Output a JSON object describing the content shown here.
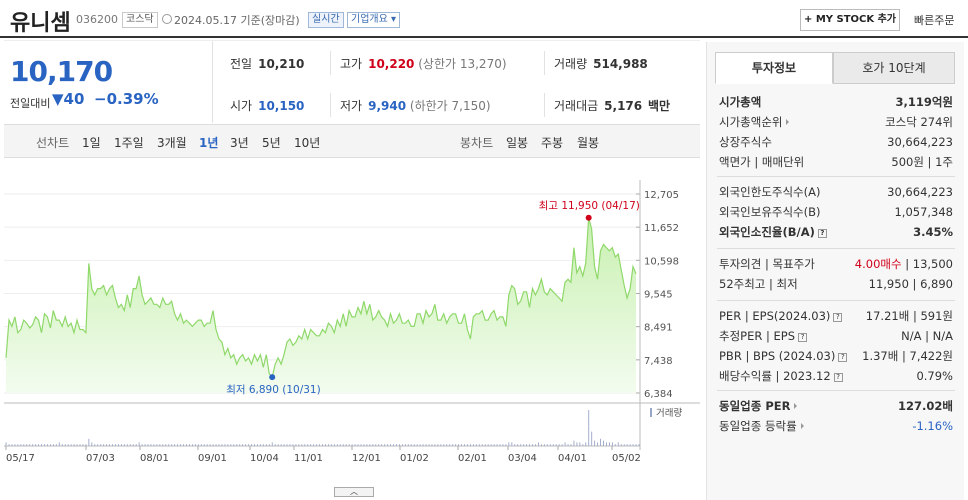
{
  "header": {
    "name": "유니셈",
    "code": "036200",
    "market_tag": "코스닥",
    "date": "2024.05.17",
    "date_suffix": "기준(장마감)",
    "live_tag": "실시간",
    "info_tag": "기업개요 ▾",
    "mystock_label": "+ MY STOCK 추가",
    "quick_order": "빠른주문"
  },
  "price": {
    "current": "10,170",
    "change_label": "전일대비",
    "change": "▼40",
    "change_pct": "−0.39%",
    "prev_close_label": "전일",
    "prev_close": "10,210",
    "high_label": "고가",
    "high": "10,220",
    "upper_limit": "(상한가 13,270)",
    "volume_label": "거래량",
    "volume": "514,988",
    "open_label": "시가",
    "open": "10,150",
    "low_label": "저가",
    "low": "9,940",
    "lower_limit": "(하한가 7,150)",
    "amount_label": "거래대금",
    "amount": "5,176",
    "amount_unit": "백만"
  },
  "tabs": {
    "line_chart": "선차트",
    "periods": [
      "1일",
      "1주일",
      "3개월",
      "1년",
      "3년",
      "5년",
      "10년"
    ],
    "active_period": "1년",
    "candle_chart": "봉차트",
    "candle_periods": [
      "일봉",
      "주봉",
      "월봉"
    ]
  },
  "chart_data": {
    "type": "area",
    "y_ticks": [
      "12,705",
      "11,652",
      "10,598",
      "9,545",
      "8,491",
      "7,438",
      "6,384"
    ],
    "ylim": [
      6384,
      12705
    ],
    "x_ticks": [
      "05/17",
      "07/03",
      "08/01",
      "09/01",
      "10/04",
      "11/01",
      "12/01",
      "01/02",
      "02/01",
      "03/04",
      "04/01",
      "05/02"
    ],
    "series": [
      {
        "values": [
          7500,
          8700,
          8500,
          8800,
          8300,
          8400,
          8700,
          8600,
          8450,
          8550,
          8800,
          8700,
          8300,
          8900,
          8800,
          8450,
          9000,
          8700,
          8700,
          8500,
          8800,
          8500,
          8600,
          8300,
          8700,
          8400,
          8400,
          8300,
          10500,
          9700,
          9500,
          9700,
          9700,
          9800,
          9500,
          9700,
          9800,
          9400,
          9100,
          9200,
          9000,
          9500,
          9100,
          9700,
          9700,
          10100,
          9500,
          9200,
          9300,
          9400,
          9200,
          9200,
          9100,
          9400,
          9200,
          9200,
          9300,
          8900,
          8700,
          8900,
          8600,
          8700,
          8600,
          8500,
          8600,
          8700,
          8700,
          8500,
          8600,
          8600,
          9000,
          8400,
          8100,
          8000,
          7600,
          7800,
          7500,
          7600,
          7300,
          7500,
          7600,
          7400,
          7500,
          7300,
          7600,
          7400,
          7600,
          7200,
          7600,
          7000,
          6890,
          7300,
          7500,
          7300,
          7600,
          8000,
          8100,
          7900,
          8000,
          8200,
          8100,
          8400,
          8100,
          8400,
          8300,
          8200,
          8200,
          8400,
          8300,
          8600,
          8500,
          8300,
          8700,
          8500,
          8900,
          8500,
          9000,
          8800,
          8800,
          9100,
          8900,
          9300,
          8900,
          9200,
          8700,
          8800,
          9000,
          8800,
          8700,
          8500,
          8900,
          8600,
          8700,
          8900,
          8600,
          8600,
          8700,
          8500,
          8500,
          8900,
          8900,
          8600,
          9000,
          8800,
          8900,
          9200,
          8700,
          8700,
          8900,
          8600,
          8800,
          8900,
          8900,
          8600,
          8600,
          8900,
          8400,
          8100,
          8800,
          8900,
          8900,
          9000,
          8700,
          8700,
          8900,
          9000,
          8700,
          8800,
          8800,
          8500,
          9500,
          9800,
          9700,
          9200,
          9300,
          9600,
          9600,
          9100,
          9700,
          9500,
          9700,
          10000,
          9600,
          9500,
          9700,
          9600,
          9500,
          9400,
          9300,
          9900,
          10000,
          9900,
          11000,
          10200,
          10400,
          10100,
          10500,
          11950,
          11600,
          10400,
          10000,
          10900,
          11100,
          11000,
          10900,
          11000,
          10700,
          10800,
          10300,
          9800,
          9400,
          9700,
          10400,
          10170
        ]
      }
    ],
    "max_label": "최고 11,950 (04/17)",
    "min_label": "최저 6,890 (10/31)",
    "volume_label": "거래량",
    "volume_values": [
      2,
      1,
      1,
      1,
      1,
      1,
      1,
      1,
      1,
      1,
      1,
      1,
      1,
      1,
      1,
      1,
      1,
      1,
      2,
      1,
      1,
      1,
      1,
      1,
      1,
      1,
      1,
      1,
      4,
      2,
      1,
      1,
      1,
      1,
      1,
      1,
      1,
      1,
      1,
      1,
      1,
      1,
      1,
      1,
      1,
      2,
      1,
      1,
      1,
      1,
      1,
      1,
      1,
      1,
      1,
      1,
      1,
      1,
      1,
      1,
      1,
      1,
      1,
      1,
      1,
      1,
      1,
      1,
      1,
      1,
      1,
      1,
      1,
      1,
      1,
      1,
      1,
      1,
      1,
      1,
      1,
      1,
      1,
      1,
      1,
      1,
      1,
      1,
      1,
      1,
      2,
      1,
      1,
      1,
      1,
      1,
      1,
      1,
      1,
      1,
      1,
      1,
      1,
      1,
      1,
      1,
      1,
      1,
      1,
      1,
      1,
      1,
      1,
      1,
      1,
      1,
      1,
      1,
      1,
      1,
      1,
      1,
      1,
      1,
      1,
      1,
      1,
      1,
      1,
      1,
      1,
      1,
      1,
      1,
      1,
      1,
      1,
      1,
      1,
      1,
      1,
      1,
      1,
      1,
      1,
      1,
      1,
      1,
      1,
      1,
      1,
      1,
      1,
      1,
      1,
      1,
      1,
      1,
      1,
      1,
      1,
      1,
      1,
      1,
      1,
      1,
      1,
      1,
      1,
      1,
      2,
      2,
      1,
      1,
      1,
      1,
      1,
      1,
      1,
      1,
      2,
      1,
      1,
      1,
      1,
      1,
      1,
      1,
      1,
      2,
      1,
      1,
      3,
      2,
      2,
      1,
      2,
      20,
      8,
      3,
      2,
      4,
      3,
      2,
      2,
      2,
      1,
      2,
      1,
      1,
      1,
      1,
      1,
      1,
      1
    ]
  },
  "side": {
    "tab_active": "투자정보",
    "tab_other": "호가 10단계",
    "rows1": [
      {
        "l": "시가총액",
        "r": "3,119억원",
        "bold": true
      },
      {
        "l": "시가총액순위",
        "r": "코스닥 274위",
        "arrow": true
      },
      {
        "l": "상장주식수",
        "r": "30,664,223"
      },
      {
        "l": "액면가 | 매매단위",
        "r": "500원 | 1주"
      }
    ],
    "rows2": [
      {
        "l": "외국인한도주식수(A)",
        "r": "30,664,223"
      },
      {
        "l": "외국인보유주식수(B)",
        "r": "1,057,348"
      },
      {
        "l": "외국인소진율(B/A)",
        "r": "3.45%",
        "bold": true,
        "q": true
      }
    ],
    "rows3": [
      {
        "l": "투자의견 | 목표주가",
        "r_red": "4.00매수",
        "r": " | 13,500"
      },
      {
        "l": "52주최고 | 최저",
        "r": "11,950 | 6,890"
      }
    ],
    "rows4": [
      {
        "l": "PER | EPS(2024.03)",
        "r": "17.21배 | 591원",
        "q": true
      },
      {
        "l": "추정PER | EPS",
        "r": "N/A | N/A",
        "q": true
      },
      {
        "l": "PBR | BPS (2024.03)",
        "r": "1.37배 | 7,422원",
        "q": true
      },
      {
        "l": "배당수익률 | 2023.12",
        "r": "0.79%",
        "q": true
      }
    ],
    "rows5": [
      {
        "l": "동일업종 PER",
        "r": "127.02배",
        "bold": true,
        "arrow": true
      },
      {
        "l": "동일업종 등락률",
        "r": "-1.16%",
        "blue": true,
        "arrow": true
      }
    ]
  },
  "colors": {
    "up": "#d0021b",
    "down": "#2a64c2",
    "area": "#8fd86a"
  }
}
